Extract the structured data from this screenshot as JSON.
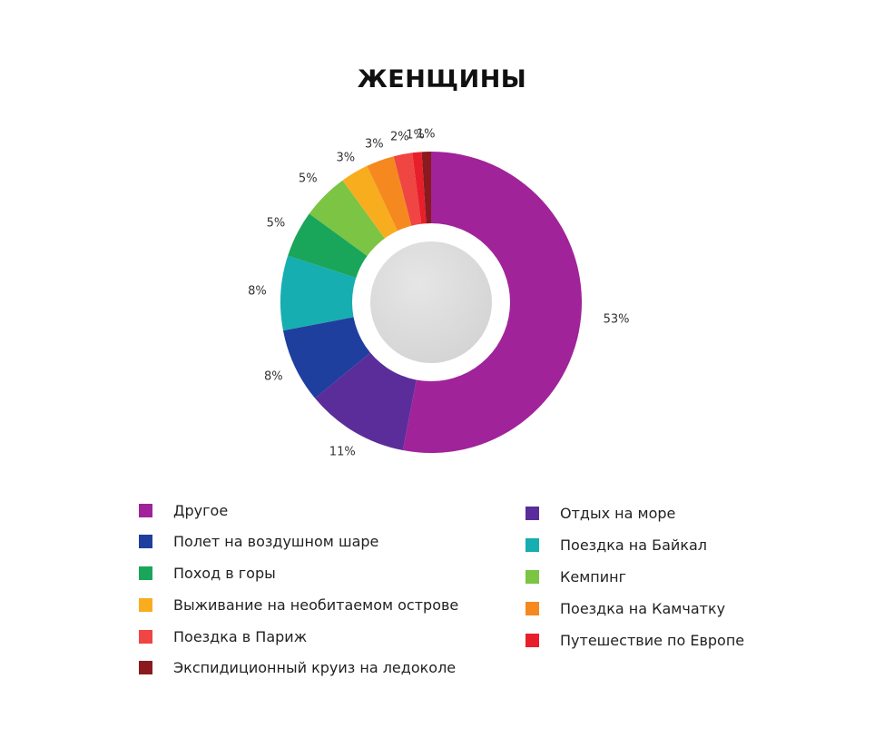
{
  "chart_data": {
    "type": "pie",
    "subtype": "donut",
    "title": "ЖЕНЩИНЫ",
    "slices": [
      {
        "label": "Другое",
        "value": 53,
        "display": "53%",
        "color": "#a0239a"
      },
      {
        "label": "Отдых на море",
        "value": 11,
        "display": "11%",
        "color": "#5b2d9a"
      },
      {
        "label": "Полет на воздушном шаре",
        "value": 8,
        "display": "8%",
        "color": "#1f3f9e"
      },
      {
        "label": "Поездка на Байкал",
        "value": 8,
        "display": "8%",
        "color": "#16aeb0"
      },
      {
        "label": "Поход в горы",
        "value": 5,
        "display": "5%",
        "color": "#1aa65a"
      },
      {
        "label": "Кемпинг",
        "value": 5,
        "display": "5%",
        "color": "#7cc443"
      },
      {
        "label": "Выживание на необитаемом острове",
        "value": 3,
        "display": "3%",
        "color": "#f8ad1f"
      },
      {
        "label": "Поездка на Камчатку",
        "value": 3,
        "display": "3%",
        "color": "#f5891f"
      },
      {
        "label": "Поездка в Париж",
        "value": 2,
        "display": "2%",
        "color": "#ef4543"
      },
      {
        "label": "Путешествие по Европе",
        "value": 1,
        "display": "1%",
        "color": "#e81f2b"
      },
      {
        "label": "Экспидиционный круиз на ледоколе",
        "value": 1,
        "display": "1%",
        "color": "#8a1a1e"
      }
    ],
    "legend_position": "bottom",
    "legend_columns": [
      [
        "Другое",
        "Полет на воздушном шаре",
        "Поход в горы",
        "Выживание на необитаемом острове",
        "Поездка в Париж",
        "Экспидиционный круиз на ледоколе"
      ],
      [
        "Отдых на море",
        "Поездка на Байкал",
        "Кемпинг",
        "Поездка на Камчатку",
        "Путешествие по Европе"
      ]
    ]
  },
  "legend": {
    "left": [
      {
        "label": "Другое",
        "color": "#a0239a"
      },
      {
        "label": "Полет на воздушном шаре",
        "color": "#1f3f9e"
      },
      {
        "label": "Поход в горы",
        "color": "#1aa65a"
      },
      {
        "label": "Выживание на необитаемом острове",
        "color": "#f8ad1f"
      },
      {
        "label": "Поездка в Париж",
        "color": "#ef4543"
      },
      {
        "label": "Экспидиционный круиз на ледоколе",
        "color": "#8a1a1e"
      }
    ],
    "right": [
      {
        "label": "Отдых на море",
        "color": "#5b2d9a"
      },
      {
        "label": "Поездка на Байкал",
        "color": "#16aeb0"
      },
      {
        "label": "Кемпинг",
        "color": "#7cc443"
      },
      {
        "label": "Поездка на Камчатку",
        "color": "#f5891f"
      },
      {
        "label": "Путешествие по Европе",
        "color": "#e81f2b"
      }
    ]
  }
}
